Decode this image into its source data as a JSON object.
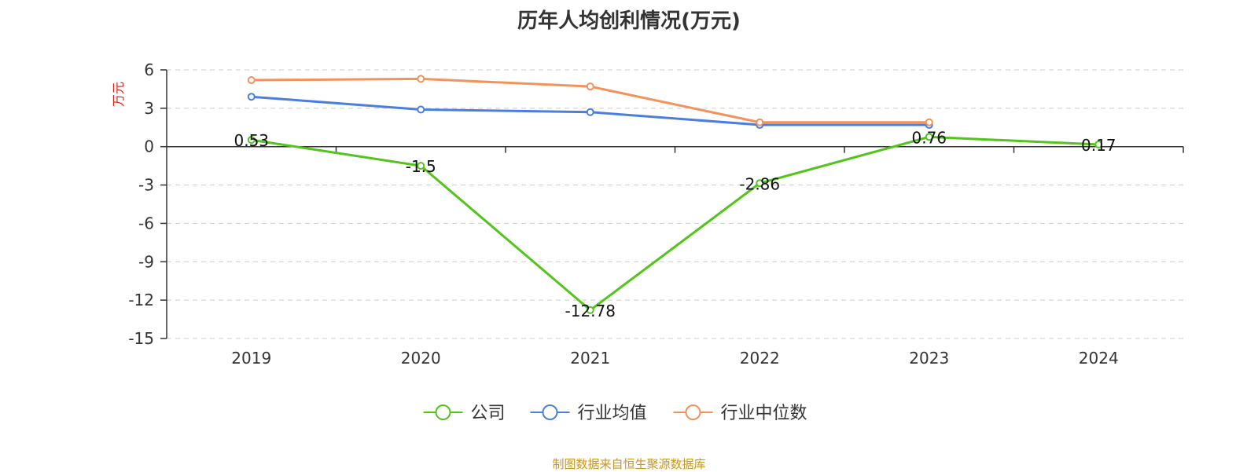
{
  "title": "历年人均创利情况(万元)",
  "source": "制图数据来自恒生聚源数据库",
  "chart_data": {
    "type": "line",
    "categories": [
      "2019",
      "2020",
      "2021",
      "2022",
      "2023",
      "2024"
    ],
    "ylabel": "万元",
    "ylim": [
      -15,
      6
    ],
    "yticks": [
      6,
      3,
      0,
      -3,
      -6,
      -9,
      -12,
      -15
    ],
    "grid": true,
    "legend_position": "bottom",
    "series": [
      {
        "name": "公司",
        "color": "#52c41a",
        "values": [
          0.53,
          -1.5,
          -12.78,
          -2.86,
          0.76,
          0.17
        ],
        "labels": [
          "0.53",
          "-1.5",
          "-12.78",
          "-2.86",
          "0.76",
          "0.17"
        ]
      },
      {
        "name": "行业均值",
        "color": "#4a7fe0",
        "values": [
          3.9,
          2.9,
          2.7,
          1.7,
          1.7,
          null
        ]
      },
      {
        "name": "行业中位数",
        "color": "#f4925b",
        "values": [
          5.2,
          5.3,
          4.7,
          1.9,
          1.9,
          null
        ]
      }
    ]
  }
}
